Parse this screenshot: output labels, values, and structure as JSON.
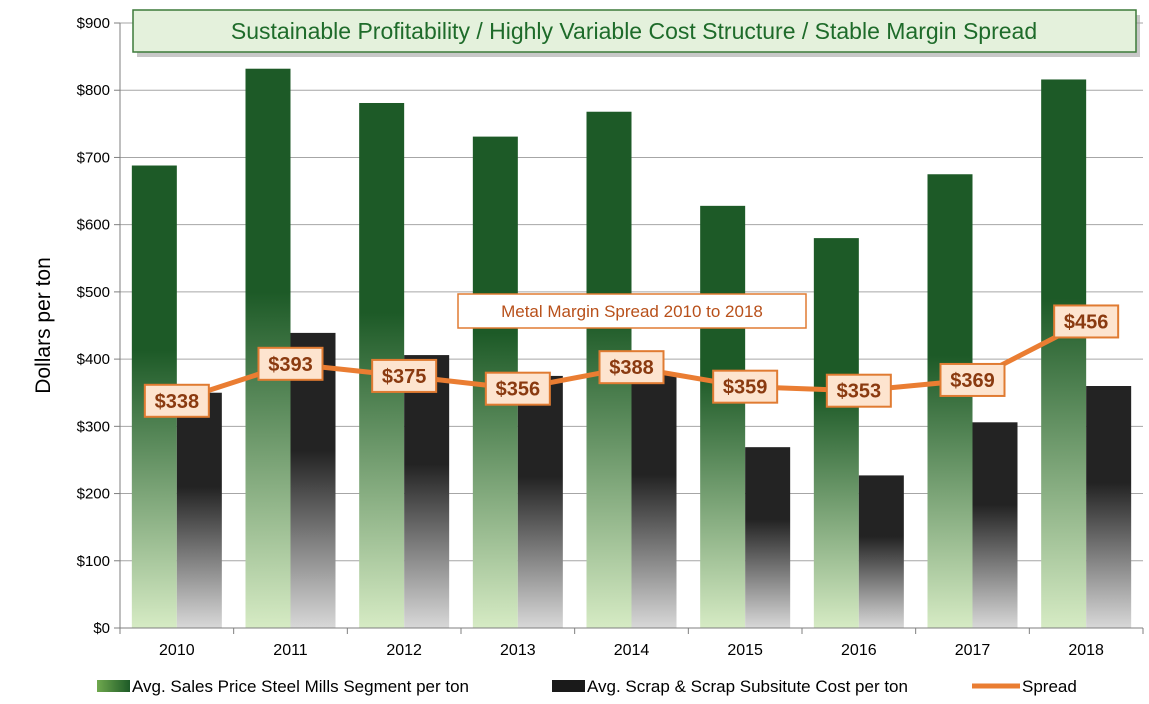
{
  "chart_data": {
    "type": "bar",
    "title": "Sustainable Profitability / Highly Variable Cost Structure / Stable Margin Spread",
    "ylabel": "Dollars per ton",
    "xlabel": "",
    "ylim": [
      0,
      900
    ],
    "ytick_values": [
      0,
      100,
      200,
      300,
      400,
      500,
      600,
      700,
      800,
      900
    ],
    "ytick_labels": [
      "$0",
      "$100",
      "$200",
      "$300",
      "$400",
      "$500",
      "$600",
      "$700",
      "$800",
      "$900"
    ],
    "categories": [
      "2010",
      "2011",
      "2012",
      "2013",
      "2014",
      "2015",
      "2016",
      "2017",
      "2018"
    ],
    "series": [
      {
        "name": "Avg. Sales Price Steel Mills Segment per ton",
        "kind": "bar",
        "values": [
          688,
          832,
          781,
          731,
          768,
          628,
          580,
          675,
          816
        ]
      },
      {
        "name": "Avg. Scrap & Scrap Subsitute Cost per ton",
        "kind": "bar",
        "values": [
          350,
          439,
          406,
          375,
          380,
          269,
          227,
          306,
          360
        ]
      },
      {
        "name": "Spread",
        "kind": "line",
        "values": [
          338,
          393,
          375,
          356,
          388,
          359,
          353,
          369,
          456
        ],
        "labels": [
          "$338",
          "$393",
          "$375",
          "$356",
          "$388",
          "$359",
          "$353",
          "$369",
          "$456"
        ]
      }
    ],
    "annotation": "Metal Margin Spread 2010 to 2018",
    "grid": true,
    "legend_position": "bottom"
  },
  "colors": {
    "sales_top": "#1d5a27",
    "sales_bottom": "#d6ebc4",
    "scrap_top": "#232323",
    "scrap_bottom": "#d8d8d8",
    "spread": "#ea7d32",
    "title_bg": "#e4f1dc",
    "title_border": "#3d7a3a",
    "label_bg": "#fde4cf",
    "label_border": "#e07b32",
    "grid": "#a6a6a6"
  }
}
